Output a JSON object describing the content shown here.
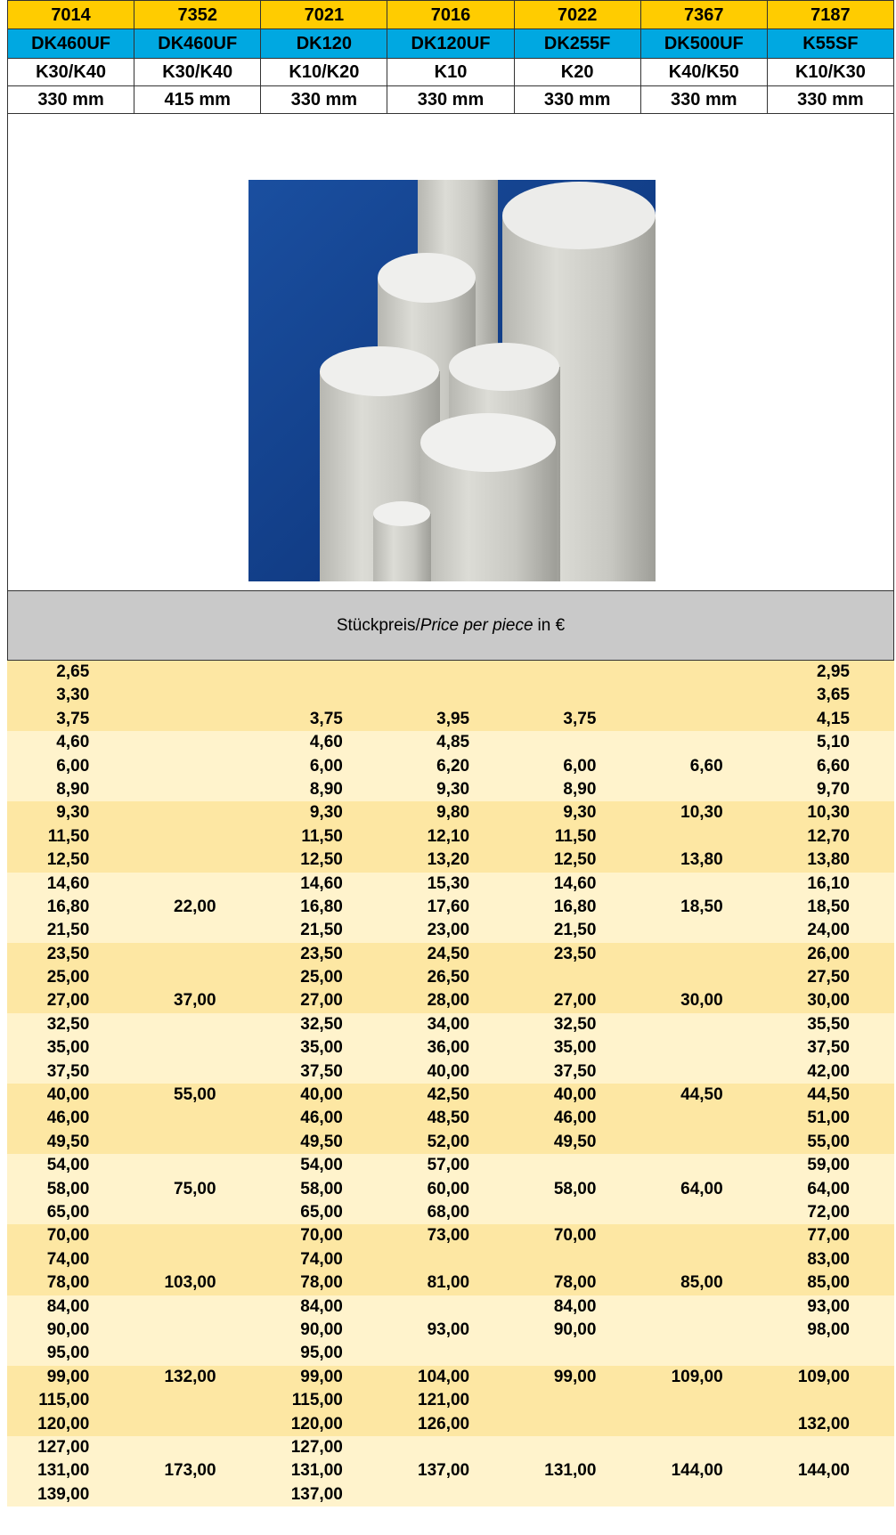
{
  "header": {
    "codes": [
      "7014",
      "7352",
      "7021",
      "7016",
      "7022",
      "7367",
      "7187"
    ],
    "names": [
      "DK460UF",
      "DK460UF",
      "DK120",
      "DK120UF",
      "DK255F",
      "DK500UF",
      "K55SF"
    ],
    "grades": [
      "K30/K40",
      "K30/K40",
      "K10/K20",
      "K10",
      "K20",
      "K40/K50",
      "K10/K30"
    ],
    "lengths": [
      "330 mm",
      "415 mm",
      "330 mm",
      "330 mm",
      "330 mm",
      "330 mm",
      "330 mm"
    ]
  },
  "price_header": {
    "prefix": "Stückpreis/",
    "italic": "Price per piece",
    "suffix": "in €"
  },
  "table": {
    "rows": [
      [
        "2,65",
        null,
        null,
        null,
        null,
        null,
        "2,95"
      ],
      [
        "3,30",
        null,
        null,
        null,
        null,
        null,
        "3,65"
      ],
      [
        "3,75",
        null,
        "3,75",
        "3,95",
        "3,75",
        null,
        "4,15"
      ],
      [
        "4,60",
        null,
        "4,60",
        "4,85",
        null,
        null,
        "5,10"
      ],
      [
        "6,00",
        null,
        "6,00",
        "6,20",
        "6,00",
        "6,60",
        "6,60"
      ],
      [
        "8,90",
        null,
        "8,90",
        "9,30",
        "8,90",
        null,
        "9,70"
      ],
      [
        "9,30",
        null,
        "9,30",
        "9,80",
        "9,30",
        "10,30",
        "10,30"
      ],
      [
        "11,50",
        null,
        "11,50",
        "12,10",
        "11,50",
        null,
        "12,70"
      ],
      [
        "12,50",
        null,
        "12,50",
        "13,20",
        "12,50",
        "13,80",
        "13,80"
      ],
      [
        "14,60",
        null,
        "14,60",
        "15,30",
        "14,60",
        null,
        "16,10"
      ],
      [
        "16,80",
        "22,00",
        "16,80",
        "17,60",
        "16,80",
        "18,50",
        "18,50"
      ],
      [
        "21,50",
        null,
        "21,50",
        "23,00",
        "21,50",
        null,
        "24,00"
      ],
      [
        "23,50",
        null,
        "23,50",
        "24,50",
        "23,50",
        null,
        "26,00"
      ],
      [
        "25,00",
        null,
        "25,00",
        "26,50",
        null,
        null,
        "27,50"
      ],
      [
        "27,00",
        "37,00",
        "27,00",
        "28,00",
        "27,00",
        "30,00",
        "30,00"
      ],
      [
        "32,50",
        null,
        "32,50",
        "34,00",
        "32,50",
        null,
        "35,50"
      ],
      [
        "35,00",
        null,
        "35,00",
        "36,00",
        "35,00",
        null,
        "37,50"
      ],
      [
        "37,50",
        null,
        "37,50",
        "40,00",
        "37,50",
        null,
        "42,00"
      ],
      [
        "40,00",
        "55,00",
        "40,00",
        "42,50",
        "40,00",
        "44,50",
        "44,50"
      ],
      [
        "46,00",
        null,
        "46,00",
        "48,50",
        "46,00",
        null,
        "51,00"
      ],
      [
        "49,50",
        null,
        "49,50",
        "52,00",
        "49,50",
        null,
        "55,00"
      ],
      [
        "54,00",
        null,
        "54,00",
        "57,00",
        null,
        null,
        "59,00"
      ],
      [
        "58,00",
        "75,00",
        "58,00",
        "60,00",
        "58,00",
        "64,00",
        "64,00"
      ],
      [
        "65,00",
        null,
        "65,00",
        "68,00",
        null,
        null,
        "72,00"
      ],
      [
        "70,00",
        null,
        "70,00",
        "73,00",
        "70,00",
        null,
        "77,00"
      ],
      [
        "74,00",
        null,
        "74,00",
        null,
        null,
        null,
        "83,00"
      ],
      [
        "78,00",
        "103,00",
        "78,00",
        "81,00",
        "78,00",
        "85,00",
        "85,00"
      ],
      [
        "84,00",
        null,
        "84,00",
        null,
        "84,00",
        null,
        "93,00"
      ],
      [
        "90,00",
        null,
        "90,00",
        "93,00",
        "90,00",
        null,
        "98,00"
      ],
      [
        "95,00",
        null,
        "95,00",
        null,
        null,
        null,
        null
      ],
      [
        "99,00",
        "132,00",
        "99,00",
        "104,00",
        "99,00",
        "109,00",
        "109,00"
      ],
      [
        "115,00",
        null,
        "115,00",
        "121,00",
        null,
        null,
        null
      ],
      [
        "120,00",
        null,
        "120,00",
        "126,00",
        null,
        null,
        "132,00"
      ],
      [
        "127,00",
        null,
        "127,00",
        null,
        null,
        null,
        null
      ],
      [
        "131,00",
        "173,00",
        "131,00",
        "137,00",
        "131,00",
        "144,00",
        "144,00"
      ],
      [
        "139,00",
        null,
        "137,00",
        null,
        null,
        null,
        null
      ]
    ]
  }
}
